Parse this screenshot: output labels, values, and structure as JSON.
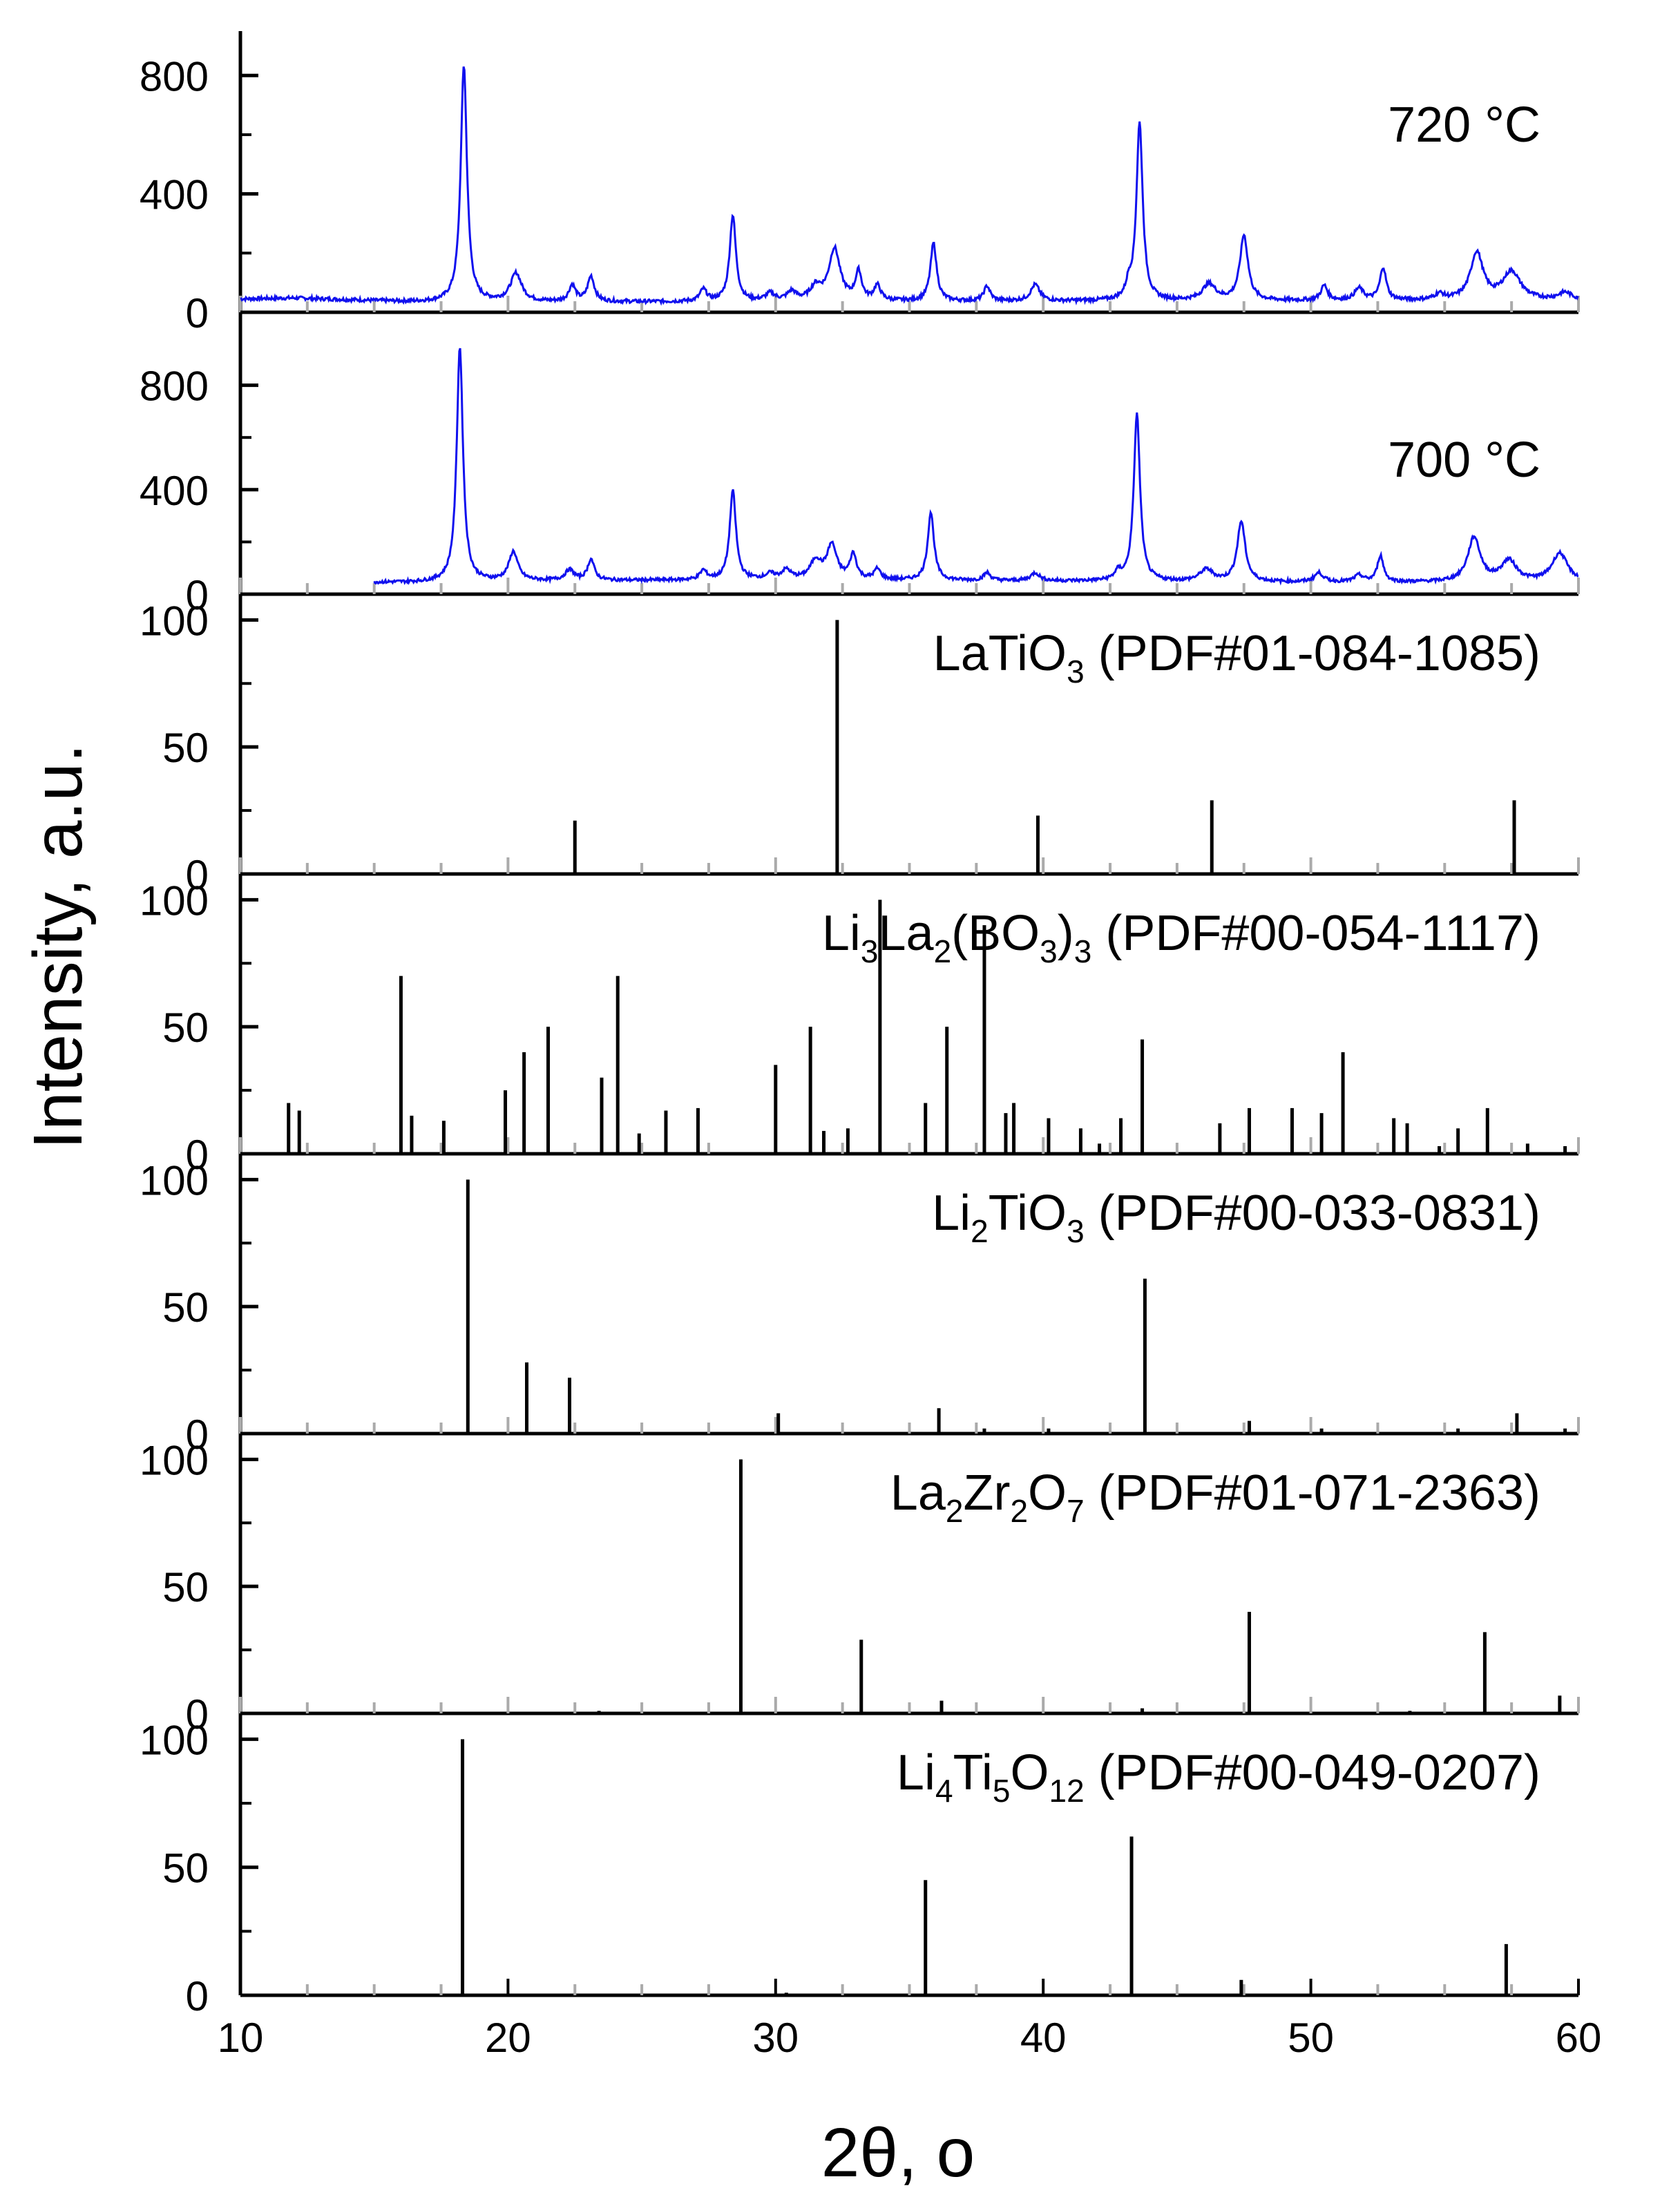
{
  "chart_data": {
    "type": "stacked-xrd",
    "xlabel": "2θ, o",
    "ylabel": "Intensity, a.u.",
    "xlim": [
      10,
      60
    ],
    "xticks": [
      "10",
      "20",
      "30",
      "40",
      "50",
      "60"
    ],
    "colors": {
      "pattern": "#1010ee",
      "reference": "#000000",
      "axis": "#000000",
      "minor_tick": "#aaaaaa"
    },
    "panels": [
      {
        "kind": "line",
        "label": "720 °C",
        "ylim": [
          0,
          880
        ],
        "yticks": [
          0,
          400,
          800
        ],
        "baseline_x": [
          10,
          12,
          14,
          16,
          17,
          18
        ],
        "baseline_y": [
          45,
          48,
          42,
          36,
          34,
          34
        ],
        "end_x": 60,
        "end_y": 40,
        "noise": 12,
        "peaks": [
          [
            18.35,
            800,
            0.14
          ],
          [
            20.3,
            95,
            0.25
          ],
          [
            22.4,
            55,
            0.15
          ],
          [
            23.1,
            85,
            0.15
          ],
          [
            27.3,
            40,
            0.15
          ],
          [
            28.4,
            290,
            0.14
          ],
          [
            29.8,
            25,
            0.2
          ],
          [
            30.6,
            30,
            0.2
          ],
          [
            31.5,
            45,
            0.25
          ],
          [
            32.2,
            175,
            0.25
          ],
          [
            33.1,
            95,
            0.14
          ],
          [
            33.8,
            50,
            0.15
          ],
          [
            35.9,
            195,
            0.14
          ],
          [
            37.9,
            50,
            0.14
          ],
          [
            39.7,
            55,
            0.2
          ],
          [
            43.2,
            45,
            0.12
          ],
          [
            43.6,
            600,
            0.14
          ],
          [
            46.2,
            55,
            0.3
          ],
          [
            47.5,
            220,
            0.18
          ],
          [
            50.5,
            50,
            0.15
          ],
          [
            51.8,
            40,
            0.2
          ],
          [
            52.7,
            110,
            0.14
          ],
          [
            54.8,
            20,
            0.2
          ],
          [
            56.2,
            160,
            0.28
          ],
          [
            57.5,
            95,
            0.4
          ],
          [
            59.5,
            25,
            0.3
          ]
        ]
      },
      {
        "kind": "line",
        "label": "700 °C",
        "ylim": [
          0,
          1000
        ],
        "yticks": [
          0,
          400,
          800
        ],
        "data_start": 15,
        "baseline_x": [
          15,
          17,
          18,
          20,
          30,
          40,
          50,
          60
        ],
        "baseline_y": [
          45,
          45,
          45,
          50,
          55,
          50,
          45,
          45
        ],
        "end_x": 60,
        "end_y": 45,
        "noise": 12,
        "peaks": [
          [
            18.2,
            900,
            0.14
          ],
          [
            20.2,
            110,
            0.2
          ],
          [
            22.3,
            40,
            0.2
          ],
          [
            23.1,
            80,
            0.15
          ],
          [
            27.3,
            35,
            0.15
          ],
          [
            28.4,
            340,
            0.14
          ],
          [
            29.8,
            20,
            0.2
          ],
          [
            30.4,
            35,
            0.2
          ],
          [
            31.5,
            70,
            0.25
          ],
          [
            32.1,
            130,
            0.22
          ],
          [
            32.9,
            95,
            0.15
          ],
          [
            33.8,
            40,
            0.15
          ],
          [
            35.8,
            260,
            0.14
          ],
          [
            37.9,
            30,
            0.15
          ],
          [
            39.7,
            30,
            0.2
          ],
          [
            42.8,
            30,
            0.15
          ],
          [
            43.5,
            640,
            0.14
          ],
          [
            46.1,
            45,
            0.3
          ],
          [
            47.4,
            230,
            0.18
          ],
          [
            50.3,
            35,
            0.2
          ],
          [
            51.8,
            25,
            0.2
          ],
          [
            52.6,
            100,
            0.14
          ],
          [
            56.1,
            170,
            0.28
          ],
          [
            57.4,
            80,
            0.35
          ],
          [
            59.3,
            110,
            0.35
          ]
        ]
      },
      {
        "kind": "sticks",
        "label_main": "LaTiO",
        "label_sub": "3",
        "label_tail": " (PDF#01-084-1085)",
        "ylim": [
          0,
          102
        ],
        "yticks": [
          0,
          50,
          100
        ],
        "x": [
          22.5,
          32.3,
          39.8,
          46.3,
          57.6
        ],
        "y": [
          21,
          100,
          23,
          29,
          29
        ]
      },
      {
        "kind": "sticks",
        "label_main": "Li",
        "label_sub": "3",
        "label_mid": "La",
        "label_sub2": "2",
        "label_mid2": "(BO",
        "label_sub3": "3",
        "label_mid3": ")",
        "label_sub4": "3",
        "label_tail": " (PDF#00-054-1117)",
        "ylim": [
          0,
          102
        ],
        "yticks": [
          0,
          50,
          100
        ],
        "x": [
          11.8,
          12.2,
          16.0,
          16.4,
          17.6,
          19.9,
          20.6,
          21.5,
          23.5,
          24.1,
          24.9,
          25.9,
          27.1,
          30.0,
          31.3,
          31.8,
          32.7,
          33.9,
          35.6,
          36.4,
          37.8,
          38.6,
          38.9,
          40.2,
          41.4,
          42.1,
          42.9,
          43.7,
          46.6,
          47.7,
          49.3,
          50.4,
          51.2,
          53.1,
          53.6,
          54.8,
          55.5,
          56.6,
          58.1,
          59.5
        ],
        "y": [
          20,
          17,
          70,
          15,
          13,
          25,
          40,
          50,
          30,
          70,
          8,
          17,
          18,
          35,
          50,
          9,
          10,
          100,
          20,
          50,
          90,
          16,
          20,
          14,
          10,
          4,
          14,
          45,
          12,
          18,
          18,
          16,
          40,
          14,
          12,
          3,
          10,
          18,
          4,
          3
        ]
      },
      {
        "kind": "sticks",
        "label_main": "Li",
        "label_sub": "2",
        "label_mid": "TiO",
        "label_sub2": "3",
        "label_tail": " (PDF#00-033-0831)",
        "ylim": [
          0,
          102
        ],
        "yticks": [
          0,
          50,
          100
        ],
        "x": [
          18.5,
          20.7,
          22.3,
          30.1,
          36.1,
          37.8,
          40.2,
          43.8,
          47.7,
          50.4,
          55.5,
          57.7,
          59.5
        ],
        "y": [
          100,
          28,
          22,
          8,
          10,
          2,
          2,
          61,
          5,
          2,
          2,
          8,
          2
        ]
      },
      {
        "kind": "sticks",
        "label_main": "La",
        "label_sub": "2",
        "label_mid": "Zr",
        "label_sub2": "2",
        "label_mid2": "O",
        "label_sub3": "7",
        "label_tail": " (PDF#01-071-2363)",
        "ylim": [
          0,
          102
        ],
        "yticks": [
          0,
          50,
          100
        ],
        "x": [
          23.4,
          28.7,
          33.2,
          36.2,
          43.7,
          47.7,
          53.7,
          56.5,
          59.3
        ],
        "y": [
          1,
          100,
          29,
          5,
          2,
          40,
          1,
          32,
          7
        ]
      },
      {
        "kind": "sticks",
        "label_main": "Li",
        "label_sub": "4",
        "label_mid": "Ti",
        "label_sub2": "5",
        "label_mid2": "O",
        "label_sub3": "12",
        "label_tail": " (PDF#00-049-0207)",
        "ylim": [
          0,
          102
        ],
        "yticks": [
          0,
          50,
          100
        ],
        "x": [
          18.3,
          30.4,
          35.6,
          43.3,
          47.4,
          57.3
        ],
        "y": [
          100,
          1,
          45,
          62,
          6,
          20
        ]
      }
    ]
  }
}
